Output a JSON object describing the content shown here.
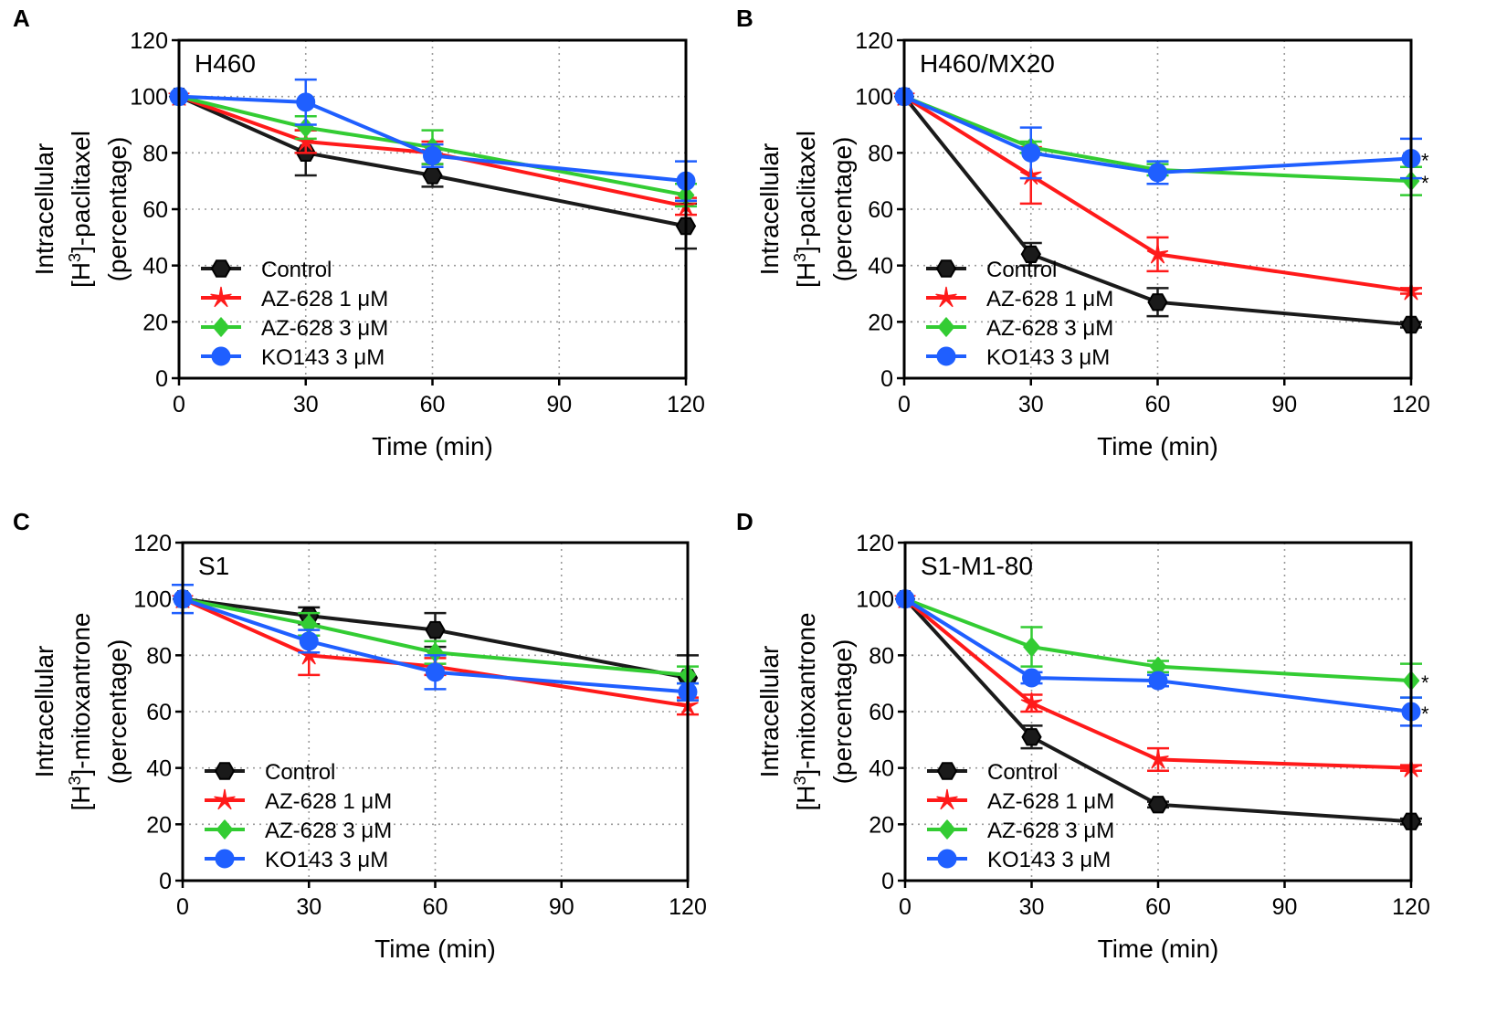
{
  "figure": {
    "palette": {
      "Control": "#1a1a1a",
      "AZ-628 1 μM": "#ff1a1a",
      "AZ-628 3 μM": "#33cc33",
      "KO143 3 μM": "#1f5fff"
    }
  },
  "chart_data": [
    {
      "type": "line",
      "panel": "A",
      "title": "H460",
      "xlabel": "Time (min)",
      "ylabel_lines": [
        "Intracellular",
        "[H3]-paclitaxel",
        "(percentage)"
      ],
      "x": [
        0,
        30,
        60,
        120
      ],
      "xticks": [
        0,
        30,
        60,
        90,
        120
      ],
      "xlim": [
        0,
        120
      ],
      "yticks": [
        0,
        20,
        40,
        60,
        80,
        100,
        120
      ],
      "ylim": [
        0,
        120
      ],
      "grid": true,
      "legend_position": "lower-left",
      "series": [
        {
          "name": "Control",
          "marker": "hexagon",
          "values": [
            100,
            80,
            72,
            54
          ],
          "errors": [
            0,
            8,
            4,
            8
          ],
          "sig": [
            false,
            false,
            false,
            false
          ]
        },
        {
          "name": "AZ-628 1 μM",
          "marker": "star",
          "values": [
            100,
            84,
            80,
            61
          ],
          "errors": [
            0,
            4,
            4,
            3
          ],
          "sig": [
            false,
            false,
            false,
            false
          ]
        },
        {
          "name": "AZ-628 3 μM",
          "marker": "diamond",
          "values": [
            100,
            89,
            82,
            65
          ],
          "errors": [
            0,
            4,
            6,
            4
          ],
          "sig": [
            false,
            false,
            false,
            false
          ]
        },
        {
          "name": "KO143 3 μM",
          "marker": "circle",
          "values": [
            100,
            98,
            79,
            70
          ],
          "errors": [
            0,
            8,
            4,
            7
          ],
          "sig": [
            false,
            false,
            false,
            false
          ]
        }
      ]
    },
    {
      "type": "line",
      "panel": "B",
      "title": "H460/MX20",
      "xlabel": "Time (min)",
      "ylabel_lines": [
        "Intracellular",
        "[H3]-paclitaxel",
        "(percentage)"
      ],
      "x": [
        0,
        30,
        60,
        120
      ],
      "xticks": [
        0,
        30,
        60,
        90,
        120
      ],
      "xlim": [
        0,
        120
      ],
      "yticks": [
        0,
        20,
        40,
        60,
        80,
        100,
        120
      ],
      "ylim": [
        0,
        120
      ],
      "grid": true,
      "legend_position": "lower-left",
      "series": [
        {
          "name": "Control",
          "marker": "hexagon",
          "values": [
            100,
            44,
            27,
            19
          ],
          "errors": [
            0,
            4,
            5,
            1
          ],
          "sig": [
            false,
            false,
            false,
            false
          ]
        },
        {
          "name": "AZ-628 1 μM",
          "marker": "star",
          "values": [
            100,
            72,
            44,
            31
          ],
          "errors": [
            0,
            10,
            6,
            1
          ],
          "sig": [
            false,
            false,
            false,
            false
          ]
        },
        {
          "name": "AZ-628 3 μM",
          "marker": "diamond",
          "values": [
            100,
            82,
            74,
            70
          ],
          "errors": [
            0,
            2,
            2,
            5
          ],
          "sig": [
            false,
            false,
            false,
            true
          ]
        },
        {
          "name": "KO143 3 μM",
          "marker": "circle",
          "values": [
            100,
            80,
            73,
            78
          ],
          "errors": [
            0,
            9,
            4,
            7
          ],
          "sig": [
            false,
            false,
            false,
            true
          ]
        }
      ]
    },
    {
      "type": "line",
      "panel": "C",
      "title": "S1",
      "xlabel": "Time (min)",
      "ylabel_lines": [
        "Intracellular",
        "[H3]-mitoxantrone",
        "(percentage)"
      ],
      "x": [
        0,
        30,
        60,
        120
      ],
      "xticks": [
        0,
        30,
        60,
        90,
        120
      ],
      "xlim": [
        0,
        120
      ],
      "yticks": [
        0,
        20,
        40,
        60,
        80,
        100,
        120
      ],
      "ylim": [
        0,
        120
      ],
      "grid": true,
      "legend_position": "lower-left",
      "series": [
        {
          "name": "Control",
          "marker": "hexagon",
          "values": [
            100,
            94,
            89,
            72
          ],
          "errors": [
            0,
            3,
            6,
            8
          ],
          "sig": [
            false,
            false,
            false,
            false
          ]
        },
        {
          "name": "AZ-628 1 μM",
          "marker": "star",
          "values": [
            100,
            80,
            76,
            62
          ],
          "errors": [
            0,
            7,
            3,
            3
          ],
          "sig": [
            false,
            false,
            false,
            false
          ]
        },
        {
          "name": "AZ-628 3 μM",
          "marker": "diamond",
          "values": [
            100,
            91,
            81,
            73
          ],
          "errors": [
            0,
            4,
            4,
            3
          ],
          "sig": [
            false,
            false,
            false,
            false
          ]
        },
        {
          "name": "KO143 3 μM",
          "marker": "circle",
          "values": [
            100,
            85,
            74,
            67
          ],
          "errors": [
            5,
            4,
            6,
            3
          ],
          "sig": [
            false,
            false,
            false,
            false
          ]
        }
      ]
    },
    {
      "type": "line",
      "panel": "D",
      "title": "S1-M1-80",
      "xlabel": "Time (min)",
      "ylabel_lines": [
        "Intracellular",
        "[H3]-mitoxantrone",
        "(percentage)"
      ],
      "x": [
        0,
        30,
        60,
        120
      ],
      "xticks": [
        0,
        30,
        60,
        90,
        120
      ],
      "xlim": [
        0,
        120
      ],
      "yticks": [
        0,
        20,
        40,
        60,
        80,
        100,
        120
      ],
      "ylim": [
        0,
        120
      ],
      "grid": true,
      "legend_position": "lower-left",
      "series": [
        {
          "name": "Control",
          "marker": "hexagon",
          "values": [
            100,
            51,
            27,
            21
          ],
          "errors": [
            0,
            4,
            1,
            1
          ],
          "sig": [
            false,
            false,
            false,
            false
          ]
        },
        {
          "name": "AZ-628 1 μM",
          "marker": "star",
          "values": [
            100,
            63,
            43,
            40
          ],
          "errors": [
            0,
            3,
            4,
            1
          ],
          "sig": [
            false,
            false,
            false,
            false
          ]
        },
        {
          "name": "AZ-628 3 μM",
          "marker": "diamond",
          "values": [
            100,
            83,
            76,
            71
          ],
          "errors": [
            0,
            7,
            2,
            6
          ],
          "sig": [
            false,
            false,
            false,
            true
          ]
        },
        {
          "name": "KO143 3 μM",
          "marker": "circle",
          "values": [
            100,
            72,
            71,
            60
          ],
          "errors": [
            0,
            2,
            2,
            5
          ],
          "sig": [
            false,
            false,
            false,
            true
          ]
        }
      ]
    }
  ]
}
